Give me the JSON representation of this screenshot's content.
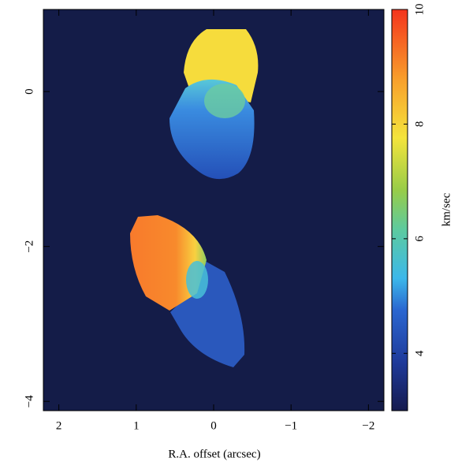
{
  "chart_data": {
    "type": "image",
    "x_label": "R.A. offset (arcsec)",
    "colorbar_label": "km/sec",
    "xlim": [
      2.2,
      -2.2
    ],
    "xticks": [
      2,
      1,
      0,
      {
        "value": -1,
        "label": "−1"
      },
      {
        "value": -2,
        "label": "−2"
      }
    ],
    "ylim": [
      -4.12,
      1.06
    ],
    "yticks": [
      0,
      {
        "value": -2,
        "label": "−2"
      },
      {
        "value": -4,
        "label": "−4"
      }
    ],
    "clim": [
      3,
      10
    ],
    "cticks": [
      4,
      6,
      8,
      10
    ]
  }
}
